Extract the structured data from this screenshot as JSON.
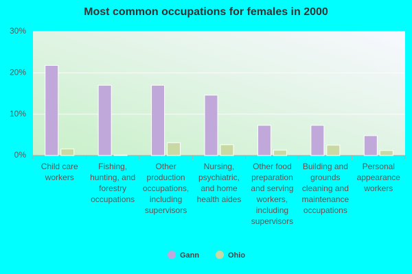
{
  "chart_data": {
    "type": "bar",
    "title": "Most common occupations for females in 2000",
    "categories": [
      "Child care workers",
      "Fishing, hunting, and forestry occupations",
      "Other production occupations, including supervisors",
      "Nursing, psychiatric, and home health aides",
      "Other food preparation and serving workers, including supervisors",
      "Building and grounds cleaning and maintenance occupations",
      "Personal appearance workers"
    ],
    "series": [
      {
        "name": "Gann",
        "color": "#c0a8da",
        "values": [
          21.8,
          17.0,
          17.0,
          14.6,
          7.3,
          7.3,
          4.8
        ]
      },
      {
        "name": "Ohio",
        "color": "#c9d9a3",
        "values": [
          1.6,
          0.1,
          3.1,
          2.6,
          1.3,
          2.5,
          1.2
        ]
      }
    ],
    "ylim": [
      0,
      30
    ],
    "yticks": [
      {
        "value": 0,
        "label": "0%"
      },
      {
        "value": 10,
        "label": "10%"
      },
      {
        "value": 20,
        "label": "20%"
      },
      {
        "value": 30,
        "label": "30%"
      }
    ],
    "grid": true
  }
}
